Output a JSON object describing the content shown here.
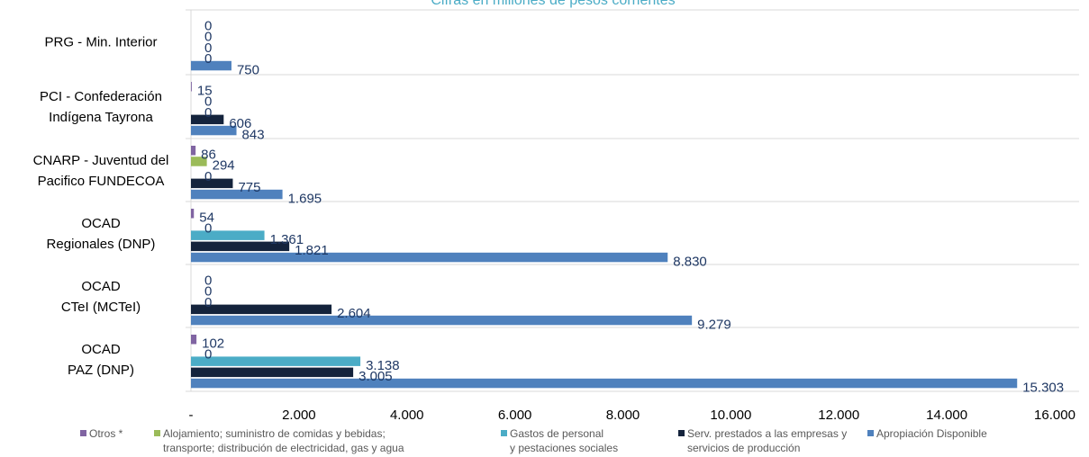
{
  "chart_data": {
    "type": "bar",
    "orientation": "horizontal",
    "title": "Cifras en millones de pesos corrientes",
    "categories": [
      [
        "PRG - Min. Interior"
      ],
      [
        "PCI - Confederación",
        "Indígena Tayrona"
      ],
      [
        "CNARP - Juventud del",
        "Pacifico FUNDECOA"
      ],
      [
        "OCAD",
        "Regionales (DNP)"
      ],
      [
        "OCAD",
        "CTeI (MCTeI)"
      ],
      [
        "OCAD",
        "PAZ (DNP)"
      ]
    ],
    "series": [
      {
        "name": "Otros *",
        "values": [
          0,
          15,
          86,
          54,
          0,
          102
        ],
        "labels": [
          "0",
          "15",
          "86",
          "54",
          "0",
          "102"
        ],
        "color": "#8064a2"
      },
      {
        "name": "Alojamiento; suministro de comidas y bebidas; transporte; distribución de electricidad, gas y agua",
        "values": [
          0,
          0,
          294,
          0,
          0,
          0
        ],
        "labels": [
          "0",
          "0",
          "294",
          "0",
          "0",
          "0"
        ],
        "color": "#9bbb59"
      },
      {
        "name": "Gastos de personal y pestaciones sociales",
        "values": [
          0,
          0,
          0,
          1361,
          0,
          3138
        ],
        "labels": [
          "0",
          "0",
          "0",
          "1.361",
          "0",
          "3.138"
        ],
        "color": "#4bacc6"
      },
      {
        "name": "Serv. prestados a las empresas y servicios de producción",
        "values": [
          0,
          606,
          775,
          1821,
          2604,
          3005
        ],
        "labels": [
          "0",
          "606",
          "775",
          "1.821",
          "2.604",
          "3.005"
        ],
        "color": "#14233c"
      },
      {
        "name": "Apropiación Disponible",
        "values": [
          750,
          843,
          1695,
          8830,
          9279,
          15303
        ],
        "labels": [
          "750",
          "843",
          "1.695",
          "8.830",
          "9.279",
          "15.303"
        ],
        "color": "#4f81bd"
      }
    ],
    "legend": [
      {
        "label_lines": [
          "Otros *"
        ],
        "color": "#8064a2"
      },
      {
        "label_lines": [
          "Alojamiento; suministro de comidas y bebidas;",
          "transporte; distribución de electricidad, gas y agua"
        ],
        "color": "#9bbb59"
      },
      {
        "label_lines": [
          "Gastos de personal",
          "y pestaciones sociales"
        ],
        "color": "#4bacc6"
      },
      {
        "label_lines": [
          "Serv. prestados a las empresas y",
          "servicios de producción"
        ],
        "color": "#14233c"
      },
      {
        "label_lines": [
          "Apropiación Disponible"
        ],
        "color": "#4f81bd"
      }
    ],
    "x_ticks": [
      "-",
      "2.000",
      "4.000",
      "6.000",
      "8.000",
      "10.000",
      "12.000",
      "14.000",
      "16.000"
    ],
    "xlim": [
      0,
      16000
    ],
    "grid": "horizontal separators between categories",
    "legend_position": "bottom",
    "title_color": "#4bacc6",
    "value_label_color": "#1f3864"
  }
}
